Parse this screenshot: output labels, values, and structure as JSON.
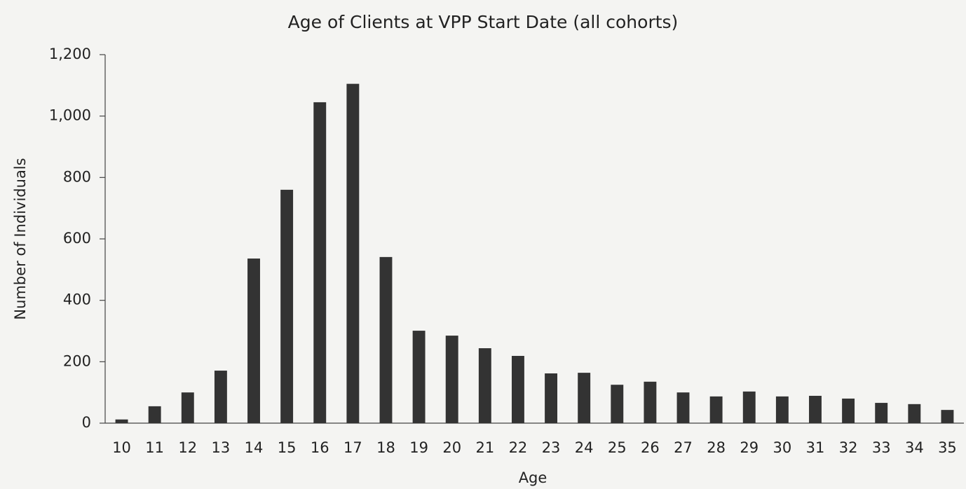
{
  "chart_data": {
    "type": "bar",
    "title": "Age of Clients at VPP Start Date (all cohorts)",
    "x_label": "Age",
    "y_label": "Number of Individuals",
    "categories": [
      "10",
      "11",
      "12",
      "13",
      "14",
      "15",
      "16",
      "17",
      "18",
      "19",
      "20",
      "21",
      "22",
      "23",
      "24",
      "25",
      "26",
      "27",
      "28",
      "29",
      "30",
      "31",
      "32",
      "33",
      "34",
      "35"
    ],
    "values": [
      12,
      55,
      100,
      171,
      536,
      760,
      1045,
      1105,
      541,
      301,
      285,
      244,
      219,
      162,
      164,
      125,
      135,
      100,
      87,
      103,
      87,
      89,
      80,
      66,
      62,
      43
    ],
    "color": "#333333",
    "ylim": [
      0,
      1200
    ],
    "yticks": [
      0,
      200,
      400,
      600,
      800,
      {
        "value": 1000,
        "label": "1,000"
      },
      {
        "value": 1200,
        "label": "1,200"
      }
    ],
    "grid": false
  }
}
